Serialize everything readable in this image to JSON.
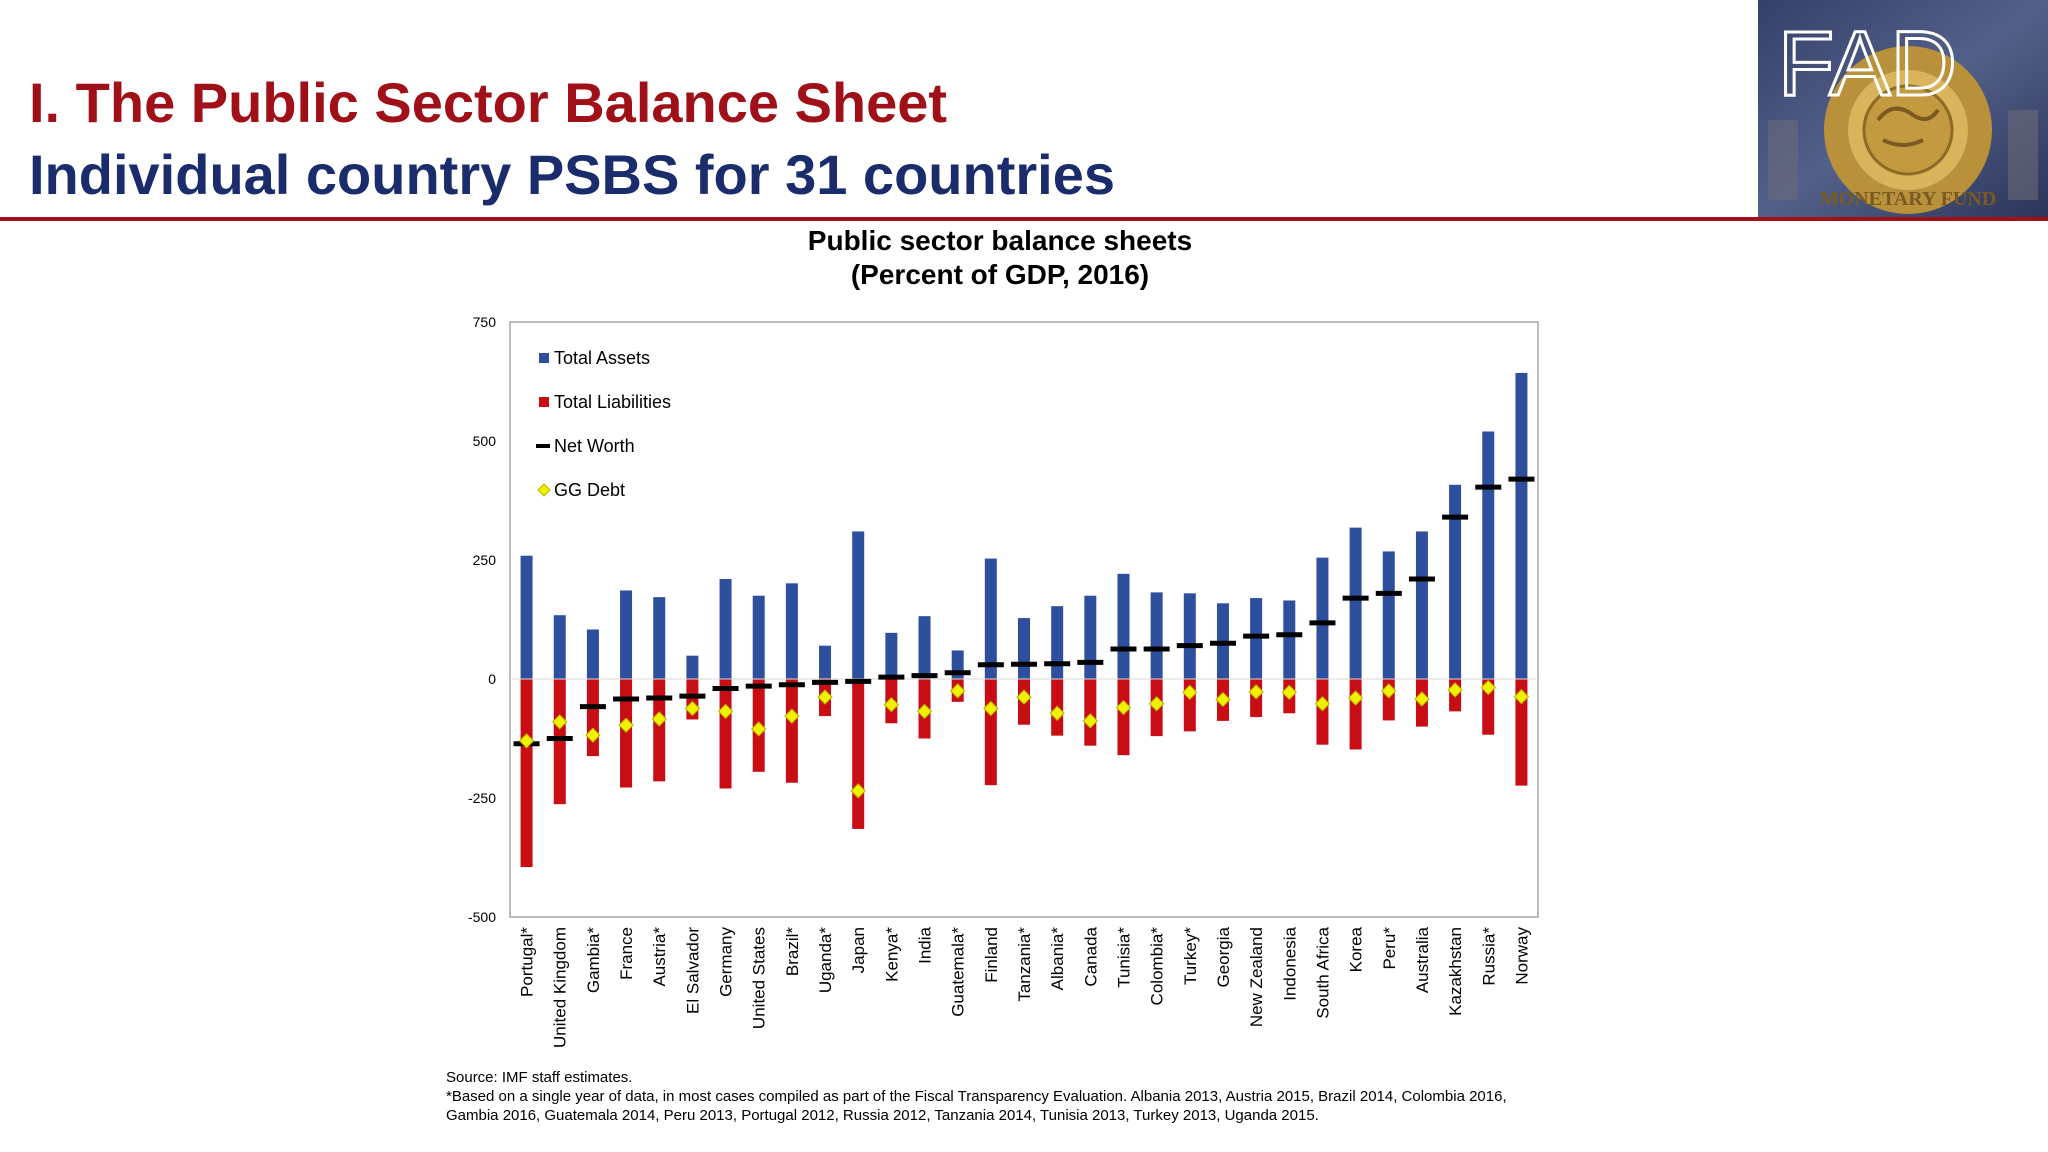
{
  "header": {
    "title": "I. The Public Sector Balance Sheet",
    "subtitle": "Individual country PSBS for 31 countries",
    "logo_text": "FAD",
    "logo_ring_text": "MONETARY FUND"
  },
  "chart_data": {
    "type": "bar",
    "title_line1": "Public sector balance sheets",
    "title_line2": "(Percent of GDP, 2016)",
    "ylim": [
      -500,
      750
    ],
    "yticks": [
      -500,
      -250,
      0,
      250,
      500,
      750
    ],
    "legend_placement": "top-left",
    "grid": false,
    "categories": [
      "Portugal*",
      "United Kingdom",
      "Gambia*",
      "France",
      "Austria*",
      "El Salvador",
      "Germany",
      "United States",
      "Brazil*",
      "Uganda*",
      "Japan",
      "Kenya*",
      "India",
      "Guatemala*",
      "Finland",
      "Tanzania*",
      "Albania*",
      "Canada",
      "Tunisia*",
      "Colombia*",
      "Turkey*",
      "Georgia",
      "New Zealand",
      "Indonesia",
      "South Africa",
      "Korea",
      "Peru*",
      "Australia",
      "Kazakhstan",
      "Russia*",
      "Norway"
    ],
    "series": [
      {
        "name": "Total Assets",
        "color": "#2e4f9e",
        "kind": "bar",
        "values": [
          259,
          134,
          104,
          186,
          172,
          49,
          210,
          175,
          201,
          70,
          310,
          97,
          132,
          60,
          253,
          128,
          153,
          175,
          221,
          182,
          180,
          159,
          170,
          165,
          255,
          318,
          268,
          310,
          408,
          520,
          643
        ]
      },
      {
        "name": "Total Liabilities",
        "color": "#c80d14",
        "kind": "bar",
        "values": [
          -395,
          -263,
          -162,
          -228,
          -215,
          -85,
          -230,
          -195,
          -218,
          -78,
          -315,
          -93,
          -125,
          -48,
          -223,
          -96,
          -119,
          -140,
          -160,
          -120,
          -110,
          -88,
          -80,
          -72,
          -138,
          -148,
          -87,
          -100,
          -68,
          -117,
          -224
        ]
      },
      {
        "name": "Net Worth",
        "color": "#000000",
        "kind": "dash",
        "values": [
          -136,
          -125,
          -58,
          -42,
          -40,
          -36,
          -20,
          -15,
          -12,
          -7,
          -5,
          4,
          7,
          13,
          30,
          31,
          32,
          35,
          63,
          63,
          70,
          75,
          90,
          93,
          118,
          170,
          180,
          210,
          340,
          403,
          420
        ]
      },
      {
        "name": "GG Debt",
        "color": "#f0f000",
        "kind": "diamond",
        "values": [
          -130,
          -90,
          -118,
          -97,
          -84,
          -62,
          -68,
          -105,
          -78,
          -38,
          -235,
          -54,
          -68,
          -25,
          -62,
          -38,
          -72,
          -88,
          -60,
          -52,
          -28,
          -43,
          -27,
          -28,
          -52,
          -40,
          -25,
          -42,
          -23,
          -18,
          -37
        ]
      }
    ]
  },
  "notes": {
    "source": "Source: IMF staff estimates.",
    "footnote": "*Based on a single year of data, in most cases compiled as part of the Fiscal Transparency Evaluation. Albania 2013, Austria 2015, Brazil 2014, Colombia 2016, Gambia 2016, Guatemala 2014, Peru 2013, Portugal 2012, Russia 2012, Tanzania 2014, Tunisia 2013, Turkey 2013, Uganda 2015."
  }
}
